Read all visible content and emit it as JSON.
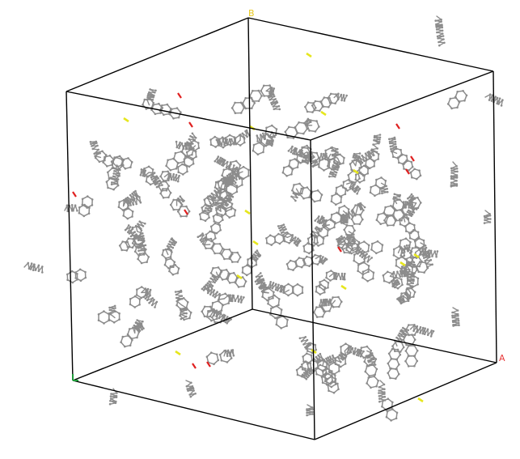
{
  "axes": {
    "a": {
      "label": "A",
      "color": "#e8393a"
    },
    "b": {
      "label": "B",
      "color": "#e8c81e"
    },
    "c": {
      "label": "",
      "color": "#1f9a3a"
    }
  },
  "colors": {
    "background": "#ffffff",
    "cell_edges": "#000000",
    "bonds": "#8c8c8c",
    "sulfur": "#e6e61e",
    "oxygen": "#e02020"
  },
  "scene": {
    "description_type": "molecular-dynamics-cell",
    "projection": "perspective"
  }
}
